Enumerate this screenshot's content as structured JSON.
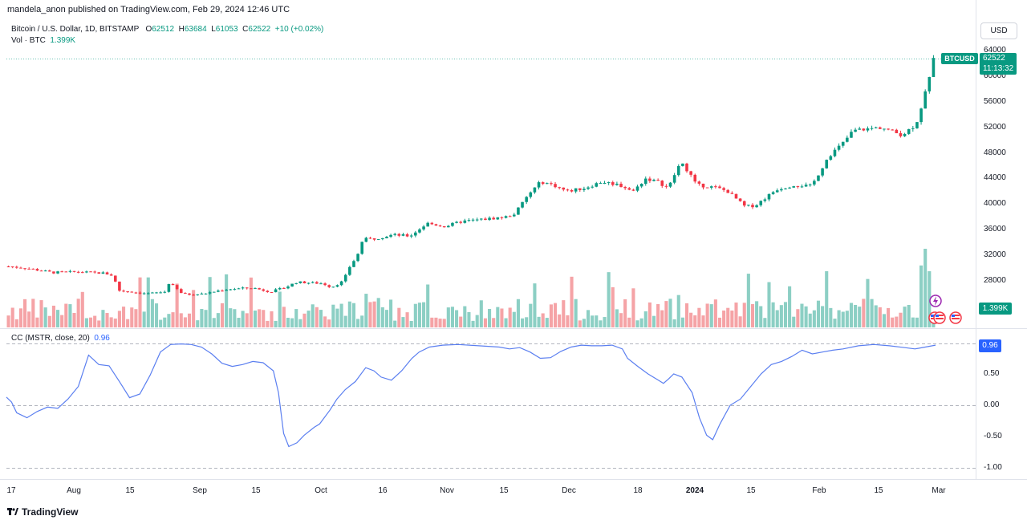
{
  "publish_line": "mandela_anon published on TradingView.com, Feb 29, 2024 12:46 UTC",
  "legend": {
    "title": "Bitcoin / U.S. Dollar, 1D, BITSTAMP",
    "o_label": "O",
    "o_value": "62512",
    "h_label": "H",
    "h_value": "63684",
    "l_label": "L",
    "l_value": "61053",
    "c_label": "C",
    "c_value": "62522",
    "change": "+10 (+0.02%)",
    "vol_label": "Vol · BTC",
    "vol_value": "1.399K",
    "cc_label": "CC (MSTR, close, 20)",
    "cc_value": "0.96"
  },
  "currency": "USD",
  "price_tag": {
    "symbol": "BTCUSD",
    "price": "62522",
    "countdown": "11:13:32"
  },
  "vol_tag": "1.399K",
  "cc_tag": "0.96",
  "brand": "TradingView",
  "colors": {
    "up": "#089981",
    "down": "#f23645",
    "vol_up": "#8ccfc4",
    "vol_down": "#f5a3a6",
    "cc_line": "#5b7ff0"
  },
  "icons": [
    "lightning-icon",
    "us-flag-icon",
    "us-flag-icon",
    "us-flag-icon"
  ],
  "chart_data": [
    {
      "type": "candlestick",
      "title": "Bitcoin / U.S. Dollar, 1D, BITSTAMP",
      "y_ticks": [
        "64000",
        "60000",
        "56000",
        "52000",
        "48000",
        "44000",
        "40000",
        "36000",
        "32000",
        "28000"
      ],
      "ylim": [
        25000,
        65000
      ],
      "x_ticks": [
        "17",
        "Aug",
        "15",
        "Sep",
        "15",
        "Oct",
        "16",
        "Nov",
        "15",
        "Dec",
        "18",
        "2024",
        "15",
        "Feb",
        "15",
        "Mar"
      ],
      "close_anchors": [
        [
          0,
          30250
        ],
        [
          10,
          30000
        ],
        [
          25,
          29300
        ],
        [
          40,
          29400
        ],
        [
          55,
          29200
        ],
        [
          60,
          28800
        ],
        [
          63,
          26500
        ],
        [
          80,
          26000
        ],
        [
          90,
          26300
        ],
        [
          92,
          27700
        ],
        [
          100,
          25900
        ],
        [
          110,
          25900
        ],
        [
          125,
          26700
        ],
        [
          140,
          26900
        ],
        [
          150,
          26300
        ],
        [
          158,
          26900
        ],
        [
          165,
          27800
        ],
        [
          180,
          27600
        ],
        [
          185,
          27000
        ],
        [
          192,
          28000
        ],
        [
          195,
          30000
        ],
        [
          200,
          32000
        ],
        [
          203,
          34500
        ],
        [
          210,
          34600
        ],
        [
          220,
          35200
        ],
        [
          230,
          35000
        ],
        [
          240,
          37000
        ],
        [
          250,
          36500
        ],
        [
          260,
          37300
        ],
        [
          275,
          37700
        ],
        [
          285,
          38000
        ],
        [
          290,
          38500
        ],
        [
          298,
          41500
        ],
        [
          305,
          43500
        ],
        [
          312,
          43000
        ],
        [
          320,
          42000
        ],
        [
          330,
          42500
        ],
        [
          340,
          43500
        ],
        [
          350,
          43000
        ],
        [
          358,
          42000
        ],
        [
          365,
          44000
        ],
        [
          372,
          43500
        ],
        [
          378,
          42500
        ],
        [
          385,
          46500
        ],
        [
          390,
          45000
        ],
        [
          394,
          43000
        ],
        [
          405,
          42600
        ],
        [
          412,
          42000
        ],
        [
          422,
          39600
        ],
        [
          428,
          39800
        ],
        [
          440,
          42300
        ],
        [
          450,
          43000
        ],
        [
          460,
          42800
        ],
        [
          470,
          47500
        ],
        [
          478,
          49500
        ],
        [
          484,
          51500
        ],
        [
          500,
          52000
        ],
        [
          505,
          51500
        ],
        [
          512,
          50800
        ],
        [
          520,
          52500
        ],
        [
          525,
          57000
        ],
        [
          528,
          60500
        ],
        [
          530,
          62500
        ]
      ],
      "volume_note": "Vol · BTC histogram, last 1.399K"
    },
    {
      "type": "line",
      "title": "CC (MSTR, close, 20)",
      "y_ticks": [
        "0.96",
        "0.50",
        "0.00",
        "-0.50",
        "-1.00"
      ],
      "ylim": [
        -1.0,
        1.05
      ],
      "points": [
        [
          0,
          0.13
        ],
        [
          5,
          0.05
        ],
        [
          10,
          -0.12
        ],
        [
          20,
          -0.2
        ],
        [
          30,
          -0.1
        ],
        [
          40,
          -0.03
        ],
        [
          50,
          -0.05
        ],
        [
          60,
          0.1
        ],
        [
          70,
          0.3
        ],
        [
          80,
          0.8
        ],
        [
          90,
          0.65
        ],
        [
          100,
          0.63
        ],
        [
          110,
          0.38
        ],
        [
          120,
          0.12
        ],
        [
          130,
          0.18
        ],
        [
          140,
          0.48
        ],
        [
          150,
          0.85
        ],
        [
          160,
          0.97
        ],
        [
          170,
          0.98
        ],
        [
          180,
          0.97
        ],
        [
          190,
          0.93
        ],
        [
          200,
          0.82
        ],
        [
          210,
          0.67
        ],
        [
          220,
          0.62
        ],
        [
          230,
          0.65
        ],
        [
          240,
          0.7
        ],
        [
          250,
          0.68
        ],
        [
          260,
          0.55
        ],
        [
          265,
          0.2
        ],
        [
          270,
          -0.45
        ],
        [
          275,
          -0.66
        ],
        [
          283,
          -0.6
        ],
        [
          290,
          -0.48
        ],
        [
          300,
          -0.35
        ],
        [
          305,
          -0.3
        ],
        [
          315,
          -0.08
        ],
        [
          322,
          0.1
        ],
        [
          330,
          0.25
        ],
        [
          340,
          0.38
        ],
        [
          350,
          0.6
        ],
        [
          358,
          0.55
        ],
        [
          365,
          0.45
        ],
        [
          375,
          0.4
        ],
        [
          385,
          0.55
        ],
        [
          395,
          0.75
        ],
        [
          402,
          0.85
        ],
        [
          412,
          0.93
        ],
        [
          425,
          0.96
        ],
        [
          440,
          0.97
        ],
        [
          460,
          0.95
        ],
        [
          480,
          0.93
        ],
        [
          490,
          0.9
        ],
        [
          500,
          0.92
        ],
        [
          510,
          0.85
        ],
        [
          520,
          0.75
        ],
        [
          530,
          0.76
        ],
        [
          540,
          0.86
        ],
        [
          550,
          0.93
        ],
        [
          560,
          0.96
        ],
        [
          570,
          0.95
        ],
        [
          580,
          0.95
        ],
        [
          590,
          0.96
        ],
        [
          600,
          0.9
        ],
        [
          605,
          0.75
        ],
        [
          615,
          0.62
        ],
        [
          625,
          0.5
        ],
        [
          635,
          0.4
        ],
        [
          640,
          0.35
        ],
        [
          645,
          0.42
        ],
        [
          650,
          0.5
        ],
        [
          658,
          0.45
        ],
        [
          668,
          0.2
        ],
        [
          675,
          -0.2
        ],
        [
          682,
          -0.48
        ],
        [
          688,
          -0.55
        ],
        [
          695,
          -0.3
        ],
        [
          705,
          0.0
        ],
        [
          715,
          0.1
        ],
        [
          725,
          0.3
        ],
        [
          735,
          0.5
        ],
        [
          745,
          0.65
        ],
        [
          755,
          0.7
        ],
        [
          765,
          0.78
        ],
        [
          775,
          0.88
        ],
        [
          785,
          0.82
        ],
        [
          795,
          0.85
        ],
        [
          805,
          0.88
        ],
        [
          815,
          0.9
        ],
        [
          830,
          0.95
        ],
        [
          845,
          0.97
        ],
        [
          860,
          0.95
        ],
        [
          875,
          0.92
        ],
        [
          885,
          0.9
        ],
        [
          895,
          0.93
        ],
        [
          905,
          0.96
        ]
      ]
    }
  ]
}
